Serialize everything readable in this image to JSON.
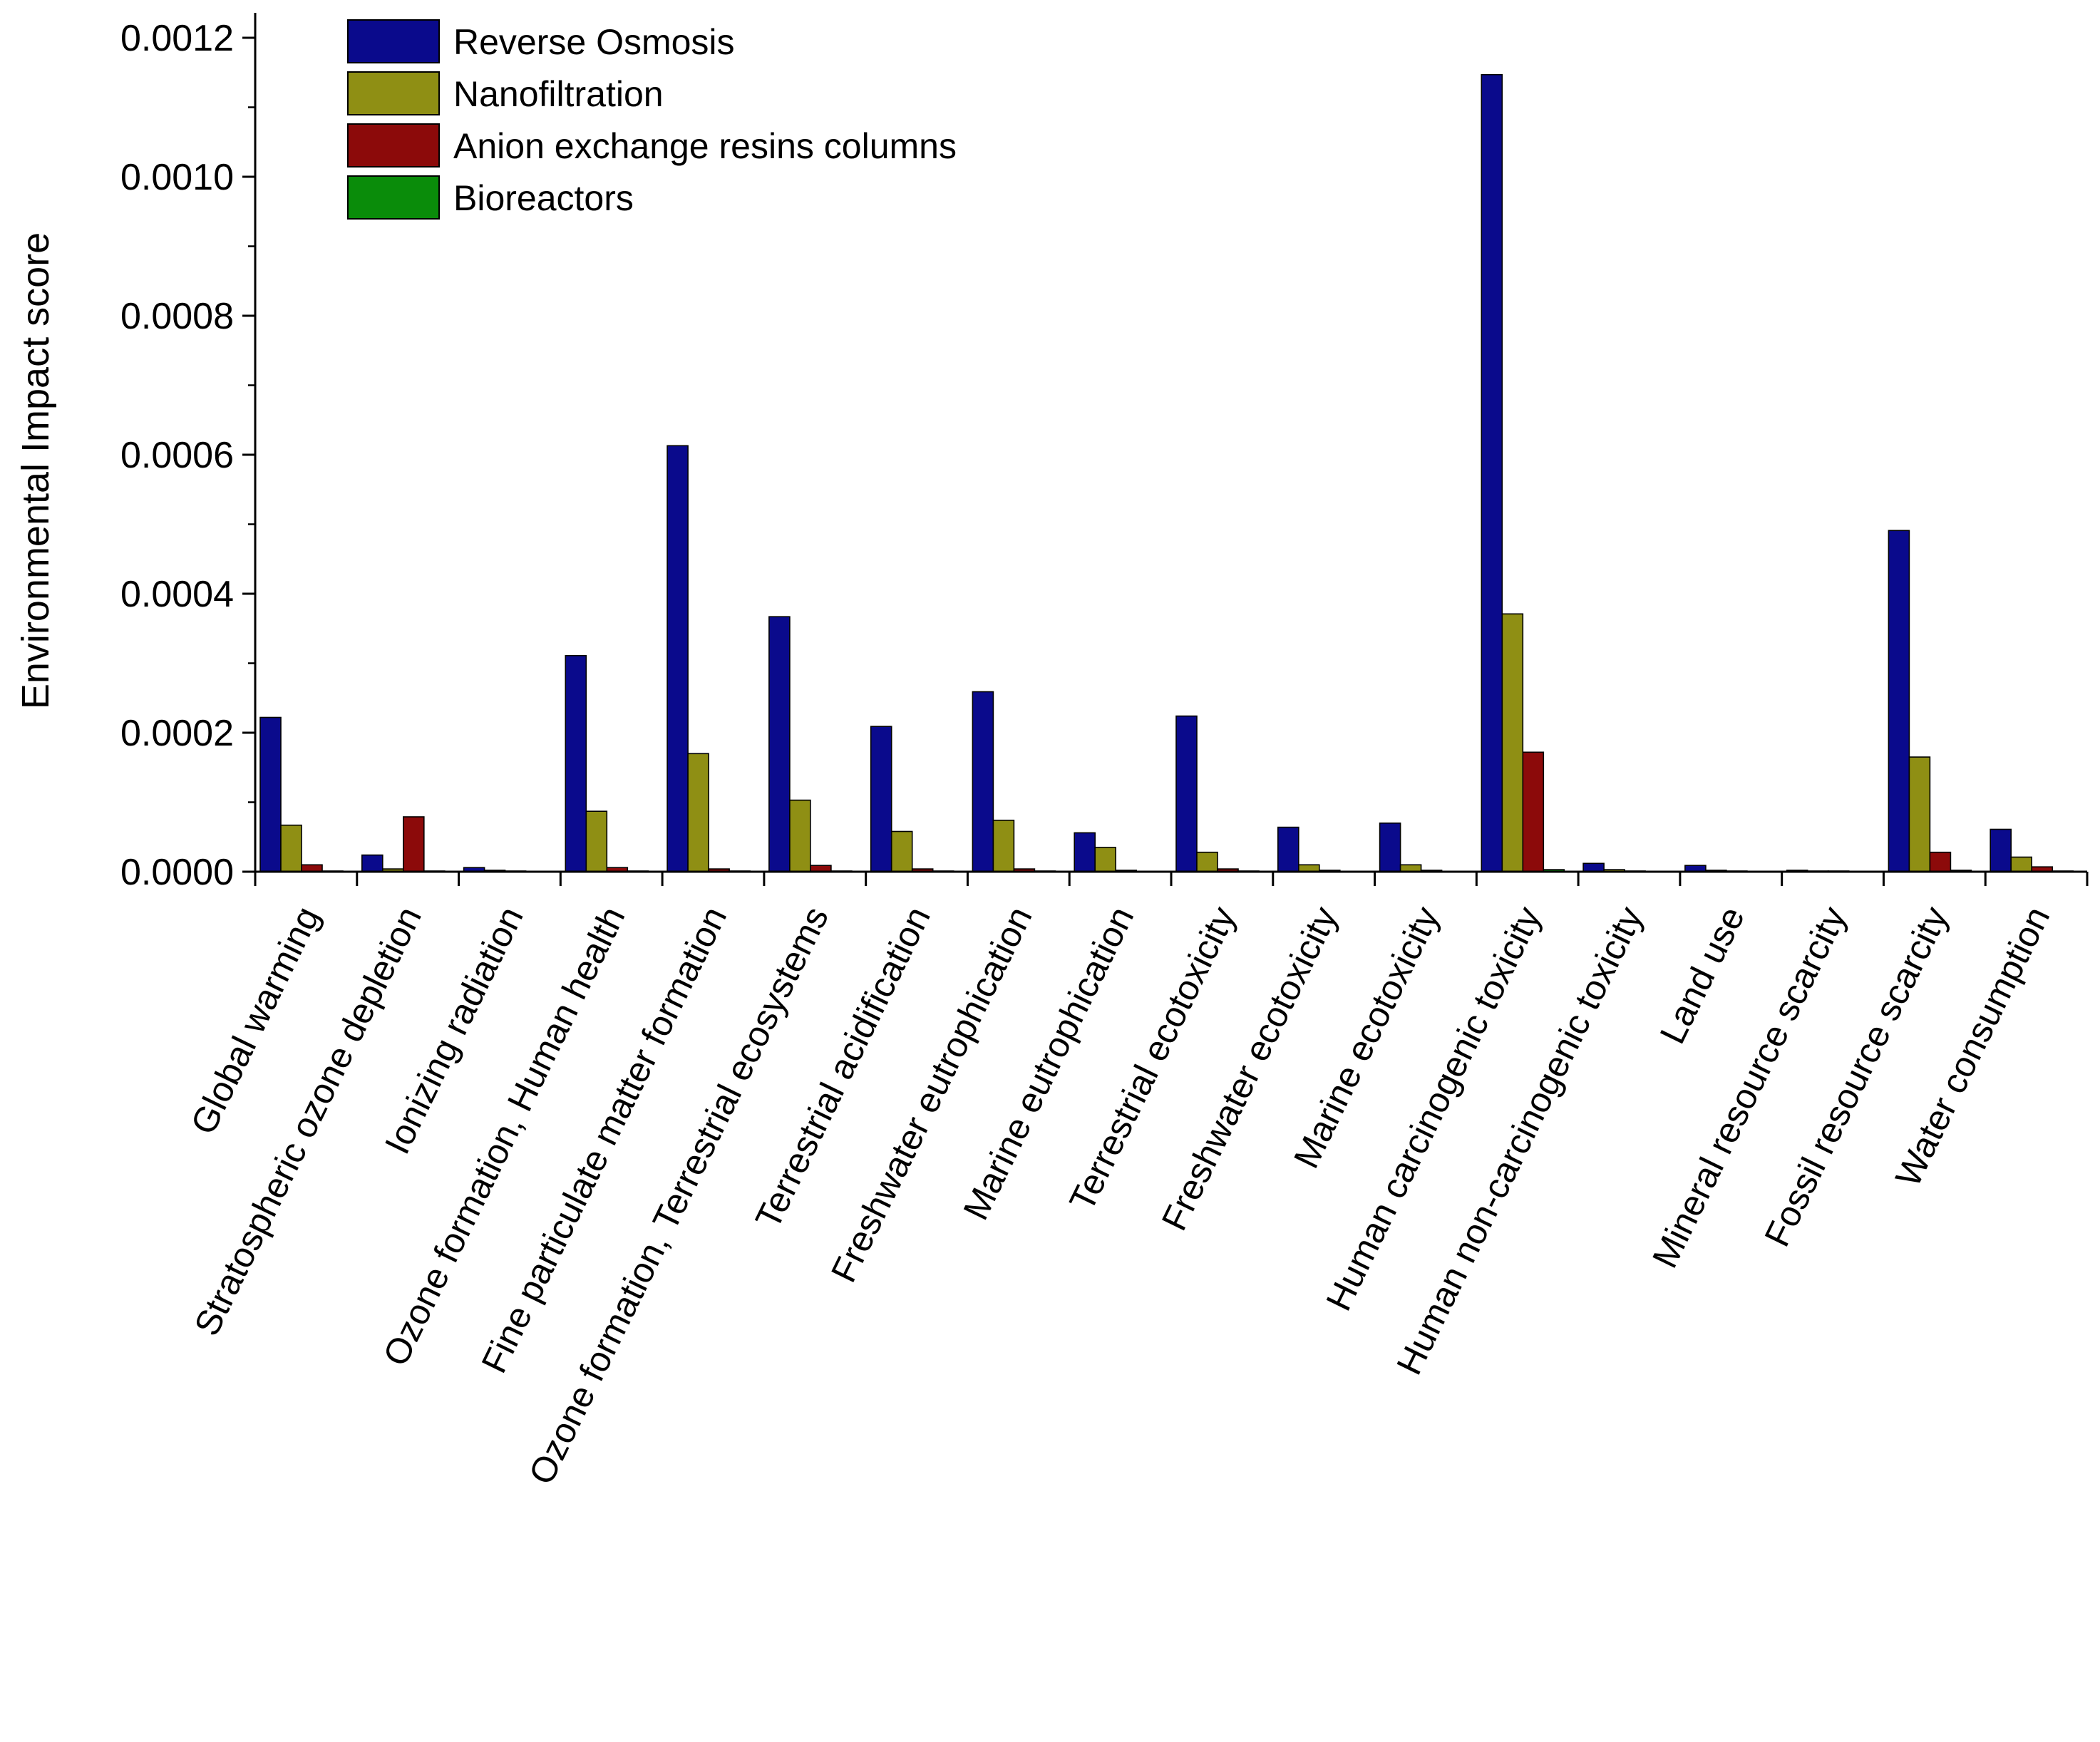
{
  "chart_data": {
    "type": "bar",
    "title": "",
    "xlabel": "",
    "ylabel": "Environmental Impact score",
    "ylim": [
      0,
      0.00122
    ],
    "yticks": [
      "0.0000",
      "0.0002",
      "0.0004",
      "0.0006",
      "0.0008",
      "0.0010",
      "0.0012"
    ],
    "ytick_values": [
      0,
      0.0002,
      0.0004,
      0.0006,
      0.0008,
      0.001,
      0.0012
    ],
    "grid": false,
    "legend_position": "top-left",
    "categories": [
      "Global warming",
      "Stratospheric ozone depletion",
      "Ionizing radiation",
      "Ozone formation, Human health",
      "Fine particulate matter formation",
      "Ozone formation,  Terrestrial ecosystems",
      "Terrestrial acidification",
      "Freshwater eutrophication",
      "Marine eutrophication",
      "Terrestrial ecotoxicity",
      "Freshwater ecotoxicity",
      "Marine ecotoxicity",
      "Human carcinogenic toxicity",
      "Human non-carcinogenic toxicity",
      "Land use",
      "Mineral resource scarcity",
      "Fossil resource scarcity",
      "Water consumption"
    ],
    "series": [
      {
        "name": "Reverse Osmosis",
        "color": "#0a0a8c",
        "values": [
          0.000222,
          2.4e-05,
          6e-06,
          0.000311,
          0.000613,
          0.000367,
          0.000209,
          0.000259,
          5.6e-05,
          0.000224,
          6.4e-05,
          7e-05,
          0.001147,
          1.2e-05,
          9e-06,
          2e-06,
          0.000491,
          6.1e-05
        ]
      },
      {
        "name": "Nanofiltration",
        "color": "#8f8f14",
        "values": [
          6.7e-05,
          4e-06,
          2e-06,
          8.7e-05,
          0.00017,
          0.000103,
          5.8e-05,
          7.4e-05,
          3.5e-05,
          2.8e-05,
          1e-05,
          1e-05,
          0.000371,
          3e-06,
          2e-06,
          1e-06,
          0.000165,
          2.1e-05
        ]
      },
      {
        "name": "Anion exchange resins columns",
        "color": "#8c0a0a",
        "values": [
          1e-05,
          7.9e-05,
          1e-06,
          6e-06,
          4e-06,
          9e-06,
          4e-06,
          4e-06,
          2e-06,
          4e-06,
          2e-06,
          2e-06,
          0.000172,
          1e-06,
          1e-06,
          1e-06,
          2.8e-05,
          7e-06
        ]
      },
      {
        "name": "Bioreactors",
        "color": "#0a8c0a",
        "values": [
          1e-06,
          1e-06,
          5e-07,
          1e-06,
          1e-06,
          1e-06,
          1e-06,
          1e-06,
          5e-07,
          1e-06,
          5e-07,
          5e-07,
          3e-06,
          5e-07,
          5e-07,
          5e-07,
          2e-06,
          1e-06
        ]
      }
    ]
  }
}
